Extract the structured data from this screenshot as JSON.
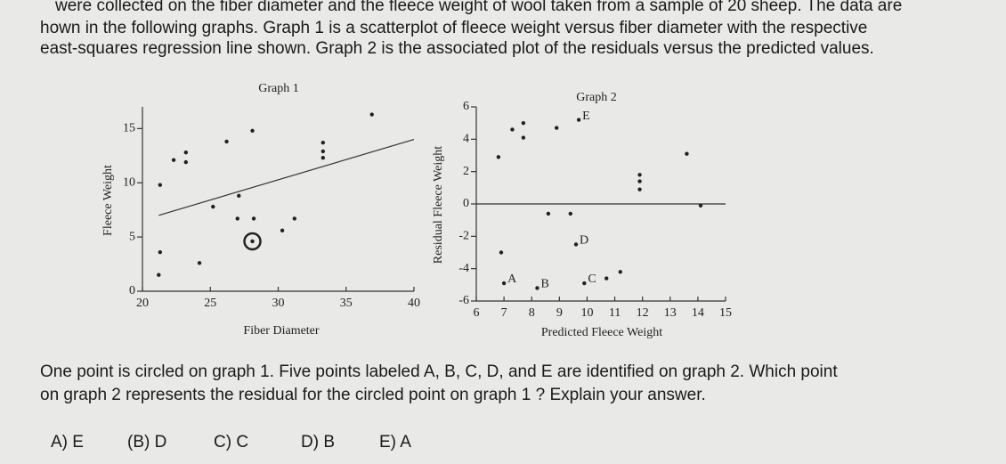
{
  "intro": [
    "were collected on the fiber diameter and the fleece weight of wool taken from a sample of 20 sheep. The data are",
    "hown in the following graphs. Graph 1 is a scatterplot of fleece weight versus fiber diameter with the respective",
    "east-squares regression line shown. Graph 2 is the associated plot of the residuals versus the predicted values."
  ],
  "chart_data": [
    {
      "type": "scatter",
      "title": "Graph 1",
      "x_label": "Fiber Diameter",
      "y_label": "Fleece Weight",
      "x": [
        36.9,
        28.1,
        26.2,
        33.3,
        33.3,
        33.3,
        23.2,
        22.3,
        23.2,
        21.3,
        27.1,
        25.2,
        27.0,
        28.2,
        31.2,
        30.3,
        28.1,
        21.3,
        24.2,
        21.2
      ],
      "y": [
        16.3,
        14.8,
        13.8,
        13.7,
        12.9,
        12.3,
        12.8,
        12.1,
        11.9,
        9.8,
        8.8,
        7.8,
        6.7,
        6.7,
        6.7,
        5.6,
        4.6,
        3.6,
        2.6,
        1.5
      ],
      "circled": 16,
      "regression_line": {
        "x": [
          21.2,
          40
        ],
        "y": [
          7.0,
          14.0
        ]
      },
      "xlim": [
        20,
        40
      ],
      "ylim": [
        0,
        17
      ],
      "xticks": [
        20,
        25,
        30,
        35,
        40
      ],
      "yticks": [
        0,
        5,
        10,
        15
      ],
      "color": "#222222"
    },
    {
      "type": "scatter",
      "title": "Graph 2",
      "x_label": "Predicted Fleece Weight",
      "y_label": "Residual Fleece Weight",
      "x": [
        7.3,
        7.7,
        7.7,
        6.8,
        8.9,
        9.7,
        11.9,
        11.9,
        11.9,
        13.6,
        14.1,
        8.6,
        9.4,
        6.9,
        9.6,
        7.0,
        8.2,
        9.9,
        10.7,
        11.2
      ],
      "y": [
        4.6,
        5.0,
        4.1,
        2.9,
        4.7,
        5.2,
        1.8,
        1.4,
        0.9,
        3.1,
        -0.1,
        -0.6,
        -0.6,
        -3.0,
        -2.5,
        -4.9,
        -5.2,
        -4.9,
        -4.6,
        -4.2
      ],
      "point_labels": [
        null,
        null,
        null,
        null,
        null,
        "E",
        null,
        null,
        null,
        null,
        null,
        null,
        null,
        null,
        "D",
        "A",
        "B",
        "C",
        null,
        null
      ],
      "hline": 0,
      "xlim": [
        6,
        15
      ],
      "ylim": [
        -6,
        6
      ],
      "xticks": [
        6,
        7,
        8,
        9,
        10,
        11,
        12,
        13,
        14,
        15
      ],
      "yticks": [
        -6,
        -4,
        -2,
        0,
        2,
        4,
        6
      ],
      "color": "#222222"
    }
  ],
  "question": [
    "One point is circled on graph 1. Five points labeled A, B, C, D, and E are identified on graph 2. Which point",
    "on graph 2 represents the residual for the circled point on graph 1 ? Explain your answer."
  ],
  "options": [
    "A) E",
    "(B) D",
    "C) C",
    "D) B",
    "E) A"
  ]
}
